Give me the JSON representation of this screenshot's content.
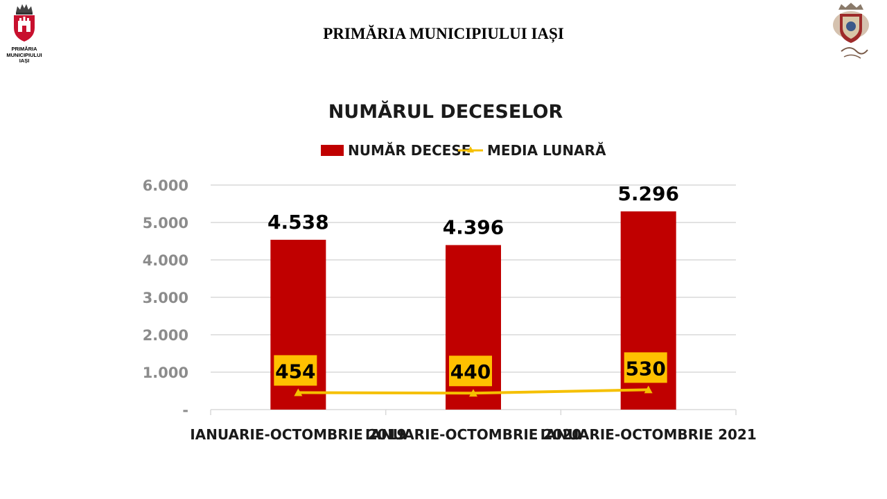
{
  "header": {
    "title": "PRIMĂRIA MUNICIPIULUI IAȘI",
    "logo_left_caption": [
      "PRIMĂRIA",
      "MUNICIPIULUI",
      "IAȘI"
    ]
  },
  "colors": {
    "bar": "#c00000",
    "line": "#f5c000",
    "label_box": "#ffc000",
    "grid": "#d9d9d9",
    "axis_tick": "#8c8c8c"
  },
  "chart_data": {
    "type": "bar",
    "title": "NUMĂRUL DECESELOR",
    "categories": [
      "IANUARIE-OCTOMBRIE 2019",
      "IANUARIE-OCTOMBRIE 2020",
      "IANUARIE-OCTOMBRIE 2021"
    ],
    "series": [
      {
        "name": "NUMĂR DECESE",
        "type": "bar",
        "values": [
          4538,
          4396,
          5296
        ],
        "labels": [
          "4.538",
          "4.396",
          "5.296"
        ]
      },
      {
        "name": "MEDIA LUNARĂ",
        "type": "line",
        "marker": "triangle",
        "values": [
          454,
          440,
          530
        ],
        "labels": [
          "454",
          "440",
          "530"
        ]
      }
    ],
    "ylim": [
      0,
      6000
    ],
    "yticks": [
      0,
      1000,
      2000,
      3000,
      4000,
      5000,
      6000
    ],
    "ytick_labels": [
      "-",
      "1.000",
      "2.000",
      "3.000",
      "4.000",
      "5.000",
      "6.000"
    ],
    "grid": true,
    "legend_position": "top"
  }
}
